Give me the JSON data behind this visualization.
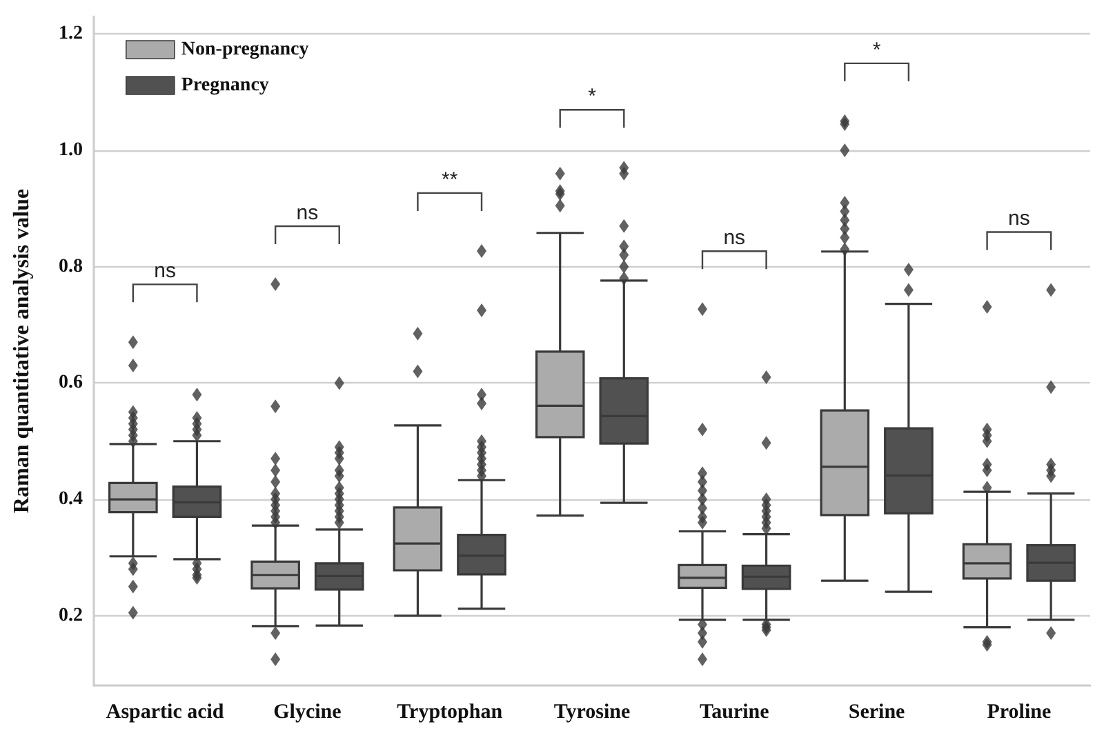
{
  "chart_data": {
    "type": "box",
    "ylabel": "Raman quantitative analysis value",
    "categories": [
      "Aspartic acid",
      "Glycine",
      "Tryptophan",
      "Tyrosine",
      "Taurine",
      "Serine",
      "Proline"
    ],
    "ylim": [
      0.08,
      1.23
    ],
    "yticks": [
      0.2,
      0.4,
      0.6,
      0.8,
      {
        "value": 1.0,
        "label": "1.0"
      },
      1.2
    ],
    "grid": "y",
    "legend": "top left",
    "marker": "diamond",
    "series": [
      {
        "name": "Non-pregnancy",
        "color": "#ababab",
        "boxes": [
          {
            "low": 0.302,
            "q1": 0.378,
            "median": 0.4,
            "q3": 0.428,
            "high": 0.495,
            "outliers": [
              0.67,
              0.63,
              0.55,
              0.54,
              0.53,
              0.52,
              0.51,
              0.5,
              0.29,
              0.28,
              0.25,
              0.205
            ]
          },
          {
            "low": 0.182,
            "q1": 0.247,
            "median": 0.27,
            "q3": 0.293,
            "high": 0.355,
            "outliers": [
              0.77,
              0.56,
              0.47,
              0.45,
              0.43,
              0.41,
              0.4,
              0.39,
              0.38,
              0.37,
              0.36,
              0.17,
              0.125
            ]
          },
          {
            "low": 0.2,
            "q1": 0.278,
            "median": 0.324,
            "q3": 0.386,
            "high": 0.527,
            "outliers": [
              0.685,
              0.62
            ]
          },
          {
            "low": 0.372,
            "q1": 0.507,
            "median": 0.561,
            "q3": 0.654,
            "high": 0.858,
            "outliers": [
              0.96,
              0.93,
              0.925,
              0.905
            ]
          },
          {
            "low": 0.193,
            "q1": 0.248,
            "median": 0.265,
            "q3": 0.287,
            "high": 0.345,
            "outliers": [
              0.727,
              0.52,
              0.445,
              0.43,
              0.415,
              0.4,
              0.385,
              0.37,
              0.36,
              0.185,
              0.17,
              0.155,
              0.125
            ]
          },
          {
            "low": 0.26,
            "q1": 0.373,
            "median": 0.456,
            "q3": 0.553,
            "high": 0.826,
            "outliers": [
              1.05,
              1.045,
              1.0,
              0.91,
              0.895,
              0.88,
              0.865,
              0.85,
              0.83
            ]
          },
          {
            "low": 0.18,
            "q1": 0.264,
            "median": 0.29,
            "q3": 0.323,
            "high": 0.413,
            "outliers": [
              0.731,
              0.52,
              0.51,
              0.5,
              0.46,
              0.45,
              0.42,
              0.155,
              0.15
            ]
          }
        ]
      },
      {
        "name": "Pregnancy",
        "color": "#515151",
        "boxes": [
          {
            "low": 0.297,
            "q1": 0.37,
            "median": 0.395,
            "q3": 0.422,
            "high": 0.5,
            "outliers": [
              0.58,
              0.54,
              0.53,
              0.52,
              0.51,
              0.29,
              0.28,
              0.27,
              0.265
            ]
          },
          {
            "low": 0.183,
            "q1": 0.245,
            "median": 0.268,
            "q3": 0.29,
            "high": 0.348,
            "outliers": [
              0.6,
              0.49,
              0.48,
              0.47,
              0.45,
              0.44,
              0.42,
              0.41,
              0.4,
              0.39,
              0.38,
              0.37,
              0.36
            ]
          },
          {
            "low": 0.212,
            "q1": 0.271,
            "median": 0.303,
            "q3": 0.339,
            "high": 0.433,
            "outliers": [
              0.827,
              0.725,
              0.58,
              0.565,
              0.5,
              0.49,
              0.48,
              0.47,
              0.46,
              0.45,
              0.44
            ]
          },
          {
            "low": 0.394,
            "q1": 0.496,
            "median": 0.543,
            "q3": 0.608,
            "high": 0.776,
            "outliers": [
              0.97,
              0.96,
              0.87,
              0.835,
              0.82,
              0.8,
              0.78
            ]
          },
          {
            "low": 0.193,
            "q1": 0.246,
            "median": 0.267,
            "q3": 0.286,
            "high": 0.34,
            "outliers": [
              0.61,
              0.497,
              0.4,
              0.39,
              0.38,
              0.37,
              0.36,
              0.35,
              0.185,
              0.18,
              0.175
            ]
          },
          {
            "low": 0.241,
            "q1": 0.376,
            "median": 0.441,
            "q3": 0.522,
            "high": 0.736,
            "outliers": [
              0.795,
              0.76
            ]
          },
          {
            "low": 0.193,
            "q1": 0.26,
            "median": 0.291,
            "q3": 0.321,
            "high": 0.41,
            "outliers": [
              0.76,
              0.593,
              0.46,
              0.45,
              0.44,
              0.17
            ]
          }
        ]
      }
    ],
    "annotations": [
      "ns",
      "ns",
      "**",
      "*",
      "ns",
      "*",
      "ns"
    ]
  }
}
